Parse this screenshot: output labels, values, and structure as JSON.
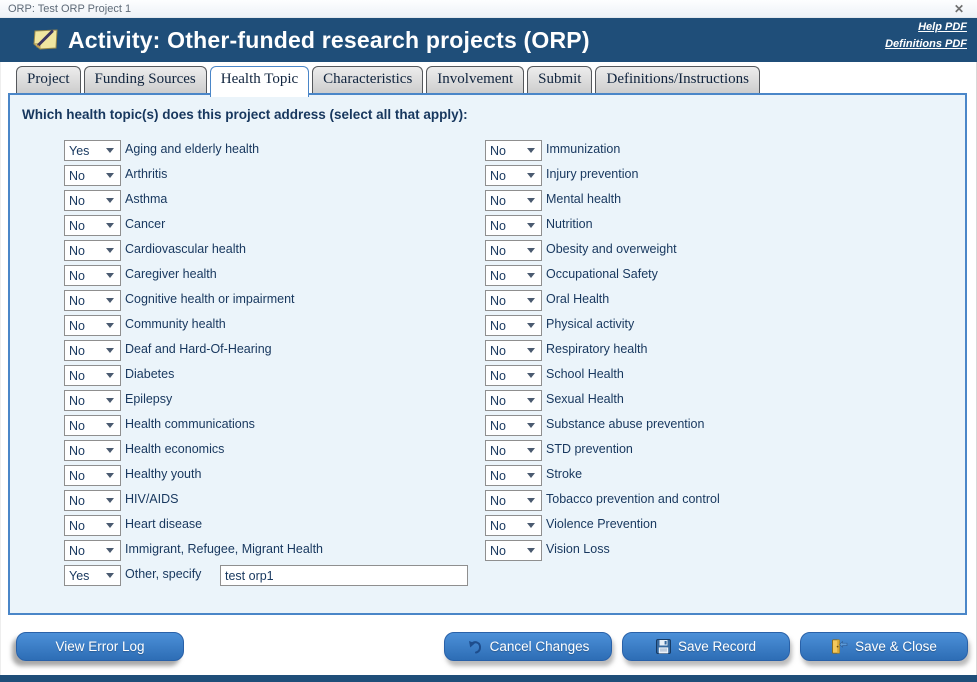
{
  "window": {
    "title": "ORP: Test ORP Project 1",
    "close_label": "✕"
  },
  "header": {
    "title": "Activity: Other-funded research projects (ORP)",
    "icon": "note-pencil-icon",
    "help_link": "Help PDF",
    "definitions_link": "Definitions PDF"
  },
  "tabs": [
    {
      "label": "Project",
      "active": false
    },
    {
      "label": "Funding Sources",
      "active": false
    },
    {
      "label": "Health Topic",
      "active": true
    },
    {
      "label": "Characteristics",
      "active": false
    },
    {
      "label": "Involvement",
      "active": false
    },
    {
      "label": "Submit",
      "active": false
    },
    {
      "label": "Definitions/Instructions",
      "active": false
    }
  ],
  "form": {
    "question": "Which health topic(s) does this project address (select all that apply):",
    "select_options": [
      "Yes",
      "No"
    ],
    "left_column": [
      {
        "label": "Aging and elderly health",
        "value": "Yes"
      },
      {
        "label": "Arthritis",
        "value": "No"
      },
      {
        "label": "Asthma",
        "value": "No"
      },
      {
        "label": "Cancer",
        "value": "No"
      },
      {
        "label": "Cardiovascular health",
        "value": "No"
      },
      {
        "label": "Caregiver health",
        "value": "No"
      },
      {
        "label": "Cognitive health or impairment",
        "value": "No"
      },
      {
        "label": "Community health",
        "value": "No"
      },
      {
        "label": "Deaf and Hard-Of-Hearing",
        "value": "No"
      },
      {
        "label": "Diabetes",
        "value": "No"
      },
      {
        "label": "Epilepsy",
        "value": "No"
      },
      {
        "label": "Health communications",
        "value": "No"
      },
      {
        "label": "Health economics",
        "value": "No"
      },
      {
        "label": "Healthy youth",
        "value": "No"
      },
      {
        "label": "HIV/AIDS",
        "value": "No"
      },
      {
        "label": "Heart disease",
        "value": "No"
      },
      {
        "label": "Immigrant, Refugee, Migrant Health",
        "value": "No"
      },
      {
        "label": "Other, specify",
        "value": "Yes",
        "input_value": "test orp1"
      }
    ],
    "right_column": [
      {
        "label": "Immunization",
        "value": "No"
      },
      {
        "label": "Injury prevention",
        "value": "No"
      },
      {
        "label": "Mental health",
        "value": "No"
      },
      {
        "label": "Nutrition",
        "value": "No"
      },
      {
        "label": "Obesity and overweight",
        "value": "No"
      },
      {
        "label": "Occupational Safety",
        "value": "No"
      },
      {
        "label": "Oral Health",
        "value": "No"
      },
      {
        "label": "Physical activity",
        "value": "No"
      },
      {
        "label": "Respiratory health",
        "value": "No"
      },
      {
        "label": "School Health",
        "value": "No"
      },
      {
        "label": "Sexual Health",
        "value": "No"
      },
      {
        "label": "Substance abuse prevention",
        "value": "No"
      },
      {
        "label": "STD prevention",
        "value": "No"
      },
      {
        "label": "Stroke",
        "value": "No"
      },
      {
        "label": "Tobacco prevention and control",
        "value": "No"
      },
      {
        "label": "Violence Prevention",
        "value": "No"
      },
      {
        "label": "Vision Loss",
        "value": "No"
      }
    ]
  },
  "footer": {
    "view_error_log": "View Error Log",
    "cancel_changes": "Cancel Changes",
    "save_record": "Save Record",
    "save_close": "Save & Close"
  },
  "colors": {
    "header_navy": "#1F4E79",
    "panel_bg": "#EBF4FA",
    "panel_border": "#4A86C8",
    "text_navy": "#17375E",
    "button_blue_top": "#4C90D8",
    "button_blue_bottom": "#2D6DB5"
  }
}
